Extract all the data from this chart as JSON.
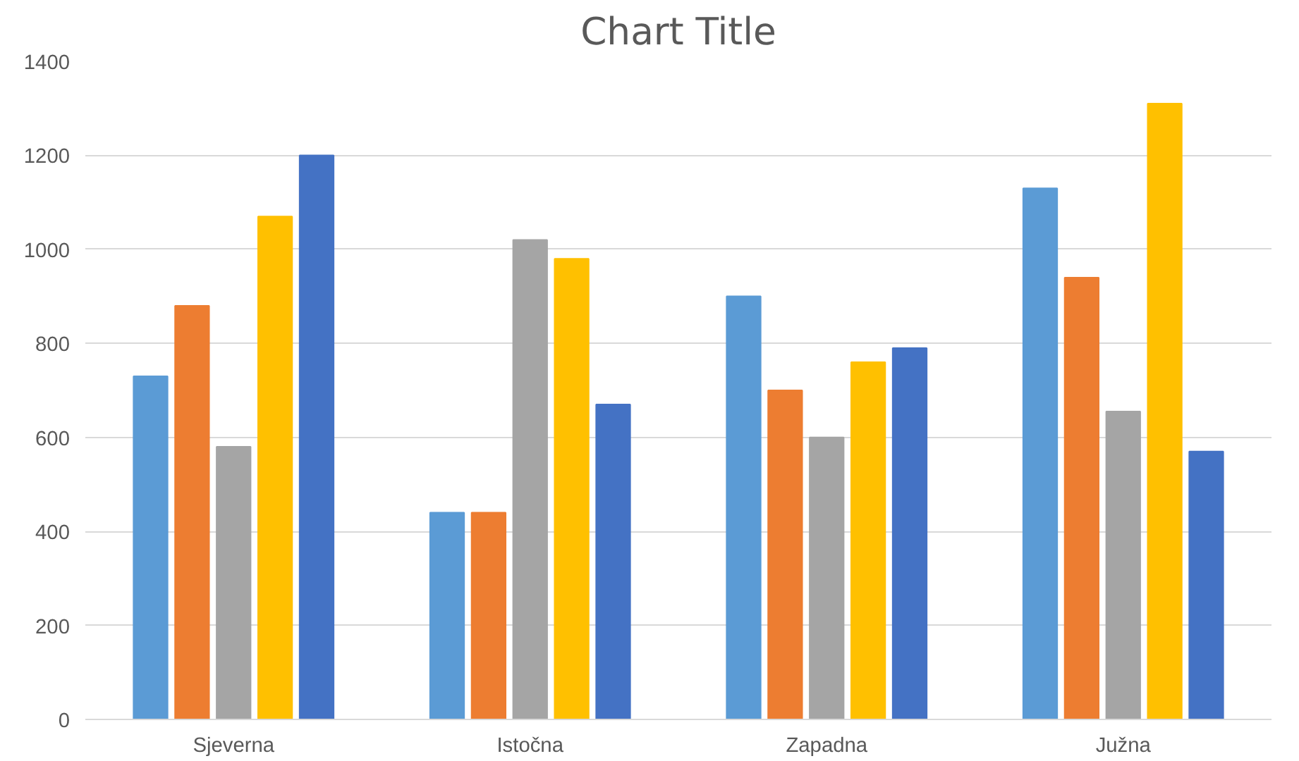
{
  "chart_data": {
    "type": "bar",
    "title": "Chart Title",
    "categories": [
      "Sjeverna",
      "Istočna",
      "Zapadna",
      "Južna"
    ],
    "series": [
      {
        "color": "#5b9bd5",
        "values": [
          730,
          440,
          900,
          1130
        ]
      },
      {
        "color": "#ed7d31",
        "values": [
          880,
          440,
          700,
          940
        ]
      },
      {
        "color": "#a5a5a5",
        "values": [
          580,
          1020,
          600,
          655
        ]
      },
      {
        "color": "#ffc000",
        "values": [
          1070,
          980,
          760,
          1310
        ]
      },
      {
        "color": "#4472c4",
        "values": [
          1200,
          670,
          790,
          570
        ]
      }
    ],
    "ylim": [
      0,
      1400
    ],
    "yticks": [
      0,
      200,
      400,
      600,
      800,
      1000,
      1200,
      1400
    ],
    "grid": "y"
  }
}
